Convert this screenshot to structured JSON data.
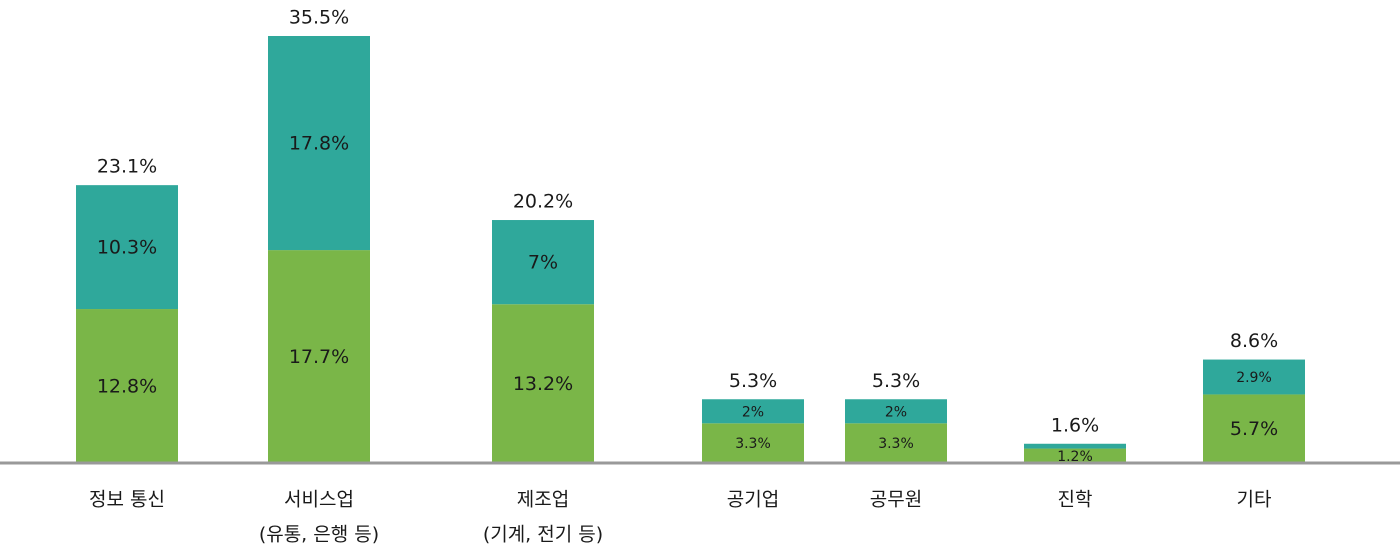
{
  "chart_data": {
    "type": "stacked-bar",
    "categories": [
      [
        "정보 통신"
      ],
      [
        "서비스업",
        "(유통, 은행 등)"
      ],
      [
        "제조업",
        "(기계, 전기 등)"
      ],
      [
        "공기업"
      ],
      [
        "공무원"
      ],
      [
        "진학"
      ],
      [
        "기타"
      ]
    ],
    "series": [
      {
        "color": "#7ab648",
        "values": [
          12.8,
          17.7,
          13.2,
          3.3,
          3.3,
          1.2,
          5.7
        ],
        "value_labels": [
          "12.8%",
          "17.7%",
          "13.2%",
          "3.3%",
          "3.3%",
          "1.2%",
          "5.7%"
        ]
      },
      {
        "color": "#2fa89b",
        "values": [
          10.3,
          17.8,
          7,
          2,
          2,
          0.4,
          2.9
        ],
        "value_labels": [
          "10.3%",
          "17.8%",
          "7%",
          "2%",
          "2%",
          null,
          "2.9%"
        ]
      }
    ],
    "totals": [
      23.1,
      35.5,
      20.2,
      5.3,
      5.3,
      1.6,
      8.6
    ],
    "total_labels": [
      "23.1%",
      "35.5%",
      "20.2%",
      "5.3%",
      "5.3%",
      "1.6%",
      "8.6%"
    ],
    "ylim": [
      0,
      35.5
    ]
  }
}
